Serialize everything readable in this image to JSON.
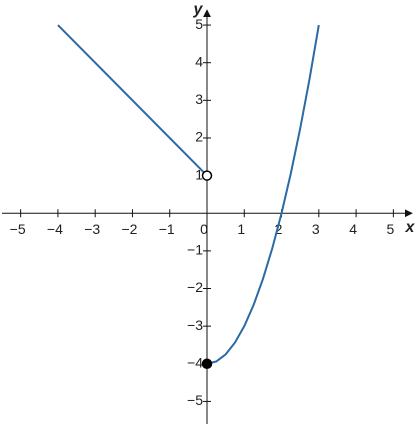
{
  "chart_data": {
    "type": "line",
    "xlabel": "x",
    "ylabel": "y",
    "xlim": [
      -5.5,
      5.5
    ],
    "ylim": [
      -5.6,
      5.4
    ],
    "xticks": [
      {
        "value": -5,
        "label": "−5"
      },
      {
        "value": -4,
        "label": "−4"
      },
      {
        "value": -3,
        "label": "−3"
      },
      {
        "value": -2,
        "label": "−2"
      },
      {
        "value": -1,
        "label": "−1"
      },
      0,
      1,
      2,
      3,
      4,
      5
    ],
    "yticks": [
      {
        "value": -5,
        "label": "−5"
      },
      {
        "value": -4,
        "label": "−4"
      },
      {
        "value": -3,
        "label": "−3"
      },
      {
        "value": -2,
        "label": "−2"
      },
      {
        "value": -1,
        "label": "−1"
      },
      1,
      2,
      3,
      4,
      5
    ],
    "color": "#2b6aa3",
    "series": [
      {
        "x": [
          -4,
          0
        ],
        "values": [
          5,
          1
        ]
      },
      {
        "x": [
          0,
          0.25,
          0.5,
          0.75,
          1,
          1.25,
          1.5,
          1.75,
          2,
          2.25,
          2.5,
          2.75,
          3
        ],
        "values": [
          -4,
          -3.9375,
          -3.75,
          -3.4375,
          -3,
          -2.4375,
          -1.75,
          -0.9375,
          0,
          1.0625,
          2.25,
          3.5625,
          5
        ]
      }
    ],
    "points": [
      {
        "x": 0,
        "y": 1,
        "marker": "open"
      },
      {
        "x": 0,
        "y": -4,
        "marker": "filled"
      }
    ]
  }
}
